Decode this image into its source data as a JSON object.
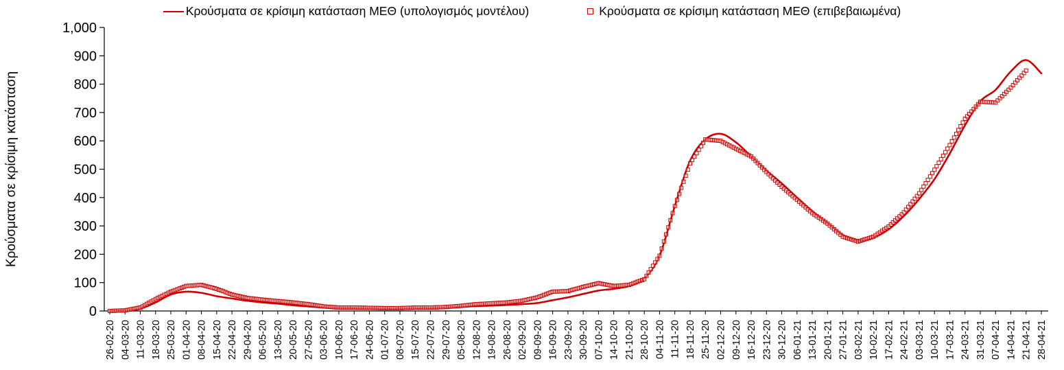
{
  "legend": {
    "model": "Κρούσματα σε κρίσιμη κατάσταση ΜΕΘ (υπολογισμός μοντέλου)",
    "confirmed": "Κρούσματα σε κρίσιμη κατάσταση ΜΕΘ (επιβεβαιωμένα)"
  },
  "chart_data": {
    "type": "line",
    "title": "",
    "xlabel": "",
    "ylabel": "Κρούσματα σε κρίσιμη κατάσταση",
    "ylim": [
      0,
      1000
    ],
    "y_ticks": [
      0,
      100,
      200,
      300,
      400,
      500,
      600,
      700,
      800,
      900,
      1000
    ],
    "grid": false,
    "legend_position": "top",
    "accent_color": "#cc0000",
    "categories": [
      "26-02-20",
      "04-03-20",
      "11-03-20",
      "18-03-20",
      "25-03-20",
      "01-04-20",
      "08-04-20",
      "15-04-20",
      "22-04-20",
      "29-04-20",
      "06-05-20",
      "13-05-20",
      "20-05-20",
      "27-05-20",
      "03-06-20",
      "10-06-20",
      "17-06-20",
      "24-06-20",
      "01-07-20",
      "08-07-20",
      "15-07-20",
      "22-07-20",
      "29-07-20",
      "05-08-20",
      "12-08-20",
      "19-08-20",
      "26-08-20",
      "02-09-20",
      "09-09-20",
      "16-09-20",
      "23-09-20",
      "30-09-20",
      "07-10-20",
      "14-10-20",
      "21-10-20",
      "28-10-20",
      "04-11-20",
      "11-11-20",
      "18-11-20",
      "25-11-20",
      "02-12-20",
      "09-12-20",
      "16-12-20",
      "23-12-20",
      "30-12-20",
      "06-01-21",
      "13-01-21",
      "20-01-21",
      "27-01-21",
      "03-02-21",
      "10-02-21",
      "17-02-21",
      "24-02-21",
      "03-03-21",
      "10-03-21",
      "17-03-21",
      "24-03-21",
      "31-03-21",
      "07-04-21",
      "14-04-21",
      "21-04-21",
      "28-04-21"
    ],
    "series": [
      {
        "name": "Κρούσματα σε κρίσιμη κατάσταση ΜΕΘ (υπολογισμός μοντέλου)",
        "type": "line",
        "color": "#cc0000",
        "values": [
          0,
          1,
          8,
          30,
          58,
          68,
          64,
          52,
          44,
          36,
          30,
          26,
          20,
          16,
          12,
          10,
          9,
          8,
          7,
          7,
          8,
          9,
          11,
          14,
          17,
          19,
          21,
          24,
          28,
          38,
          48,
          60,
          72,
          78,
          88,
          115,
          195,
          370,
          530,
          605,
          625,
          595,
          545,
          495,
          450,
          400,
          352,
          310,
          268,
          248,
          258,
          288,
          335,
          395,
          465,
          555,
          655,
          740,
          780,
          845,
          885,
          838
        ]
      },
      {
        "name": "Κρούσματα σε κρίσιμη κατάσταση ΜΕΘ (επιβεβαιωμένα)",
        "type": "scatter-square",
        "color": "#cc0000",
        "values": [
          0,
          2,
          12,
          42,
          68,
          88,
          92,
          78,
          58,
          46,
          40,
          35,
          30,
          24,
          16,
          12,
          12,
          11,
          10,
          10,
          12,
          12,
          14,
          18,
          24,
          27,
          30,
          36,
          48,
          68,
          70,
          85,
          98,
          88,
          92,
          112,
          195,
          370,
          520,
          605,
          600,
          572,
          545,
          490,
          438,
          392,
          345,
          308,
          262,
          245,
          262,
          298,
          348,
          415,
          498,
          585,
          678,
          738,
          735,
          788,
          848,
          null
        ]
      }
    ]
  }
}
